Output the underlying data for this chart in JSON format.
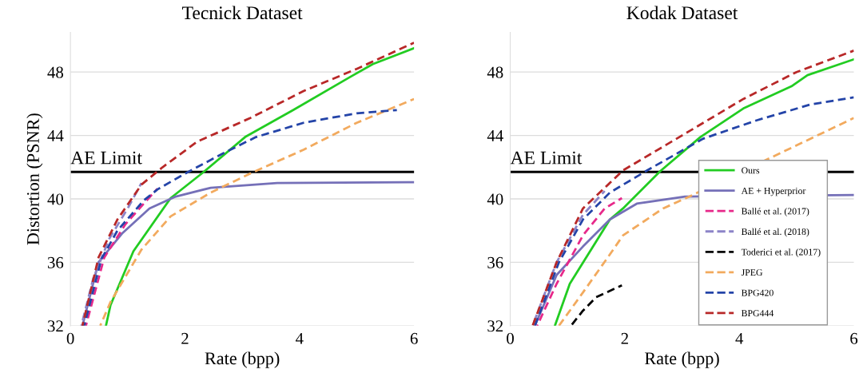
{
  "chart_data": [
    {
      "type": "line",
      "title": "Tecnick Dataset",
      "xlabel": "Rate (bpp)",
      "ylabel": "Distortion (PSNR)",
      "xlim": [
        0,
        6
      ],
      "ylim": [
        32,
        50.5
      ],
      "xticks": [
        0,
        2,
        4,
        6
      ],
      "yticks": [
        32,
        36,
        40,
        44,
        48
      ],
      "grid": "y",
      "legend": false,
      "marker": "none",
      "ref_lines": [
        {
          "axis": "y",
          "value": 41.7,
          "label": "AE Limit",
          "color": "#000000"
        }
      ],
      "series": [
        {
          "color": "#22cc22",
          "line_style": "solid",
          "x": [
            0.62,
            0.7,
            1.1,
            1.75,
            2.31,
            3.05,
            3.89,
            4.89,
            5.28,
            6.0
          ],
          "values": [
            32,
            33.3,
            36.7,
            40.05,
            41.65,
            43.9,
            45.6,
            47.7,
            48.5,
            49.5
          ]
        },
        {
          "color": "#7570b8",
          "line_style": "solid",
          "x": [
            0.21,
            0.49,
            0.91,
            1.38,
            1.84,
            2.45,
            3.61,
            6.0
          ],
          "values": [
            32,
            36.0,
            37.85,
            39.4,
            40.15,
            40.7,
            41.0,
            41.05
          ]
        },
        {
          "color": "#e7298a",
          "line_style": "dashed",
          "x": [
            0.27,
            0.59,
            0.96,
            1.28,
            1.52
          ],
          "values": [
            32,
            36.3,
            38.4,
            39.7,
            40.65
          ]
        },
        {
          "color": "#8c84c8",
          "line_style": "dashed",
          "x": [
            0.19,
            0.4,
            0.68,
            1.0,
            1.24
          ],
          "values": [
            32,
            35.0,
            37.5,
            39.4,
            41.0
          ]
        },
        {
          "color": "#f2aa5e",
          "line_style": "dashed",
          "x": [
            0.52,
            0.7,
            1.24,
            1.75,
            2.45,
            3.14,
            4.07,
            5.0,
            6.0
          ],
          "values": [
            32,
            33.5,
            36.8,
            38.9,
            40.4,
            41.6,
            43.1,
            44.8,
            46.3
          ]
        },
        {
          "color": "#2444a8",
          "line_style": "dashed",
          "x": [
            0.24,
            0.54,
            0.82,
            1.28,
            1.52,
            2.03,
            2.68,
            3.24,
            4.07,
            5.0,
            5.7
          ],
          "values": [
            32,
            36.2,
            38.0,
            39.9,
            40.6,
            41.65,
            42.9,
            43.9,
            44.8,
            45.4,
            45.6
          ]
        },
        {
          "color": "#b82828",
          "line_style": "dashed",
          "x": [
            0.21,
            0.49,
            0.82,
            1.24,
            1.61,
            2.21,
            3.14,
            4.07,
            5.0,
            6.0
          ],
          "values": [
            32,
            36.3,
            38.7,
            40.9,
            42.0,
            43.6,
            45.1,
            46.8,
            48.2,
            49.85
          ]
        }
      ]
    },
    {
      "type": "line",
      "title": "Kodak Dataset",
      "xlabel": "Rate (bpp)",
      "xlim": [
        0,
        6
      ],
      "ylim": [
        32,
        50.5
      ],
      "xticks": [
        0,
        2,
        4,
        6
      ],
      "yticks": [
        32,
        36,
        40,
        44,
        48
      ],
      "grid": "y",
      "legend": "right",
      "marker": "none",
      "ref_lines": [
        {
          "axis": "y",
          "value": 41.7,
          "label": "AE Limit",
          "color": "#000000"
        }
      ],
      "series": [
        {
          "name": "Ours",
          "color": "#22cc22",
          "line_style": "solid",
          "x": [
            0.78,
            1.04,
            1.74,
            1.97,
            2.62,
            3.32,
            4.07,
            4.91,
            5.19,
            6.0
          ],
          "values": [
            32,
            34.65,
            38.7,
            39.4,
            41.75,
            43.9,
            45.7,
            47.1,
            47.8,
            48.8
          ]
        },
        {
          "name": "AE + Hyperprior",
          "color": "#7570b8",
          "line_style": "solid",
          "x": [
            0.43,
            0.81,
            1.27,
            1.74,
            2.21,
            3.05,
            6.0
          ],
          "values": [
            32,
            35.2,
            37.0,
            38.7,
            39.7,
            40.15,
            40.25
          ]
        },
        {
          "name": "Ballé et al. (2017)",
          "color": "#e7298a",
          "line_style": "dashed",
          "x": [
            0.47,
            0.81,
            1.27,
            1.65,
            1.95
          ],
          "values": [
            32,
            34.65,
            37.7,
            39.4,
            40.05
          ]
        },
        {
          "name": "Ballé et al. (2018)",
          "color": "#8c84c8",
          "line_style": "dashed",
          "x": [
            0.39,
            0.81,
            1.27,
            1.65
          ],
          "values": [
            32,
            36.0,
            39.0,
            40.5
          ]
        },
        {
          "name": "Toderici et al. (2017)",
          "color": "#000000",
          "line_style": "dashed",
          "x": [
            1.06,
            1.27,
            1.5,
            1.95
          ],
          "values": [
            32,
            32.95,
            33.8,
            34.55
          ]
        },
        {
          "name": "JPEG",
          "color": "#f2aa5e",
          "line_style": "dashed",
          "x": [
            0.85,
            1.27,
            1.74,
            1.97,
            2.67,
            3.1,
            6.0
          ],
          "values": [
            32,
            34.1,
            36.5,
            37.7,
            39.4,
            40.1,
            45.1
          ]
        },
        {
          "name": "BPG420",
          "color": "#2444a8",
          "line_style": "dashed",
          "x": [
            0.43,
            0.85,
            1.27,
            1.74,
            2.44,
            3.37,
            4.3,
            5.24,
            6.0
          ],
          "values": [
            32,
            36.0,
            38.7,
            40.4,
            41.9,
            43.8,
            44.95,
            45.95,
            46.4
          ]
        },
        {
          "name": "BPG444",
          "color": "#b82828",
          "line_style": "dashed",
          "x": [
            0.39,
            0.81,
            1.27,
            1.97,
            3.14,
            4.07,
            5.0,
            6.0
          ],
          "values": [
            32,
            36.0,
            39.4,
            41.8,
            44.3,
            46.3,
            48.0,
            49.35
          ]
        }
      ]
    }
  ]
}
